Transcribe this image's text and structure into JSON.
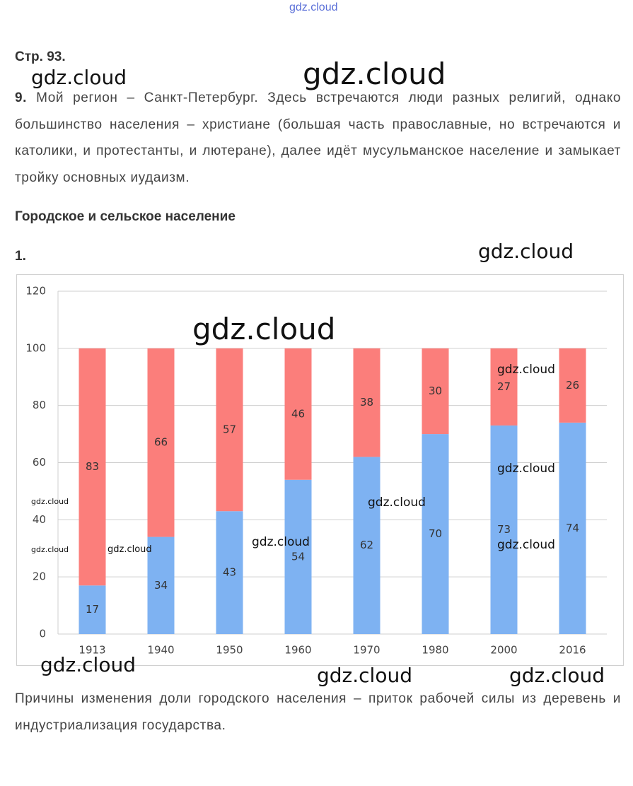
{
  "page_mark": "gdz.cloud",
  "header": "Стр. 93.",
  "task9": {
    "number": "9.",
    "text": "Мой регион – Санкт-Петербург. Здесь встречаются люди разных религий, однако большинство населения – христиане (большая часть православные, но встречаются и католики, и протестанты, и лютеране), далее идёт мусульманское население и замыкает тройку основных иудаизм."
  },
  "section_title": "Городское и сельское население",
  "task1_number": "1.",
  "chart_data": {
    "type": "stacked_bar",
    "categories": [
      "1913",
      "1940",
      "1950",
      "1960",
      "1970",
      "1980",
      "2000",
      "2016"
    ],
    "series": [
      {
        "color": "#7eb2f2",
        "values": [
          17,
          34,
          43,
          54,
          62,
          70,
          73,
          74
        ]
      },
      {
        "color": "#fb7e7b",
        "values": [
          83,
          66,
          57,
          46,
          38,
          30,
          27,
          26
        ]
      }
    ],
    "ylim": [
      0,
      120
    ],
    "yticks": [
      0,
      20,
      40,
      60,
      80,
      100,
      120
    ],
    "grid": true
  },
  "conclusion": "Причины изменения доли городского населения – приток рабочей силы из деревень и индустриализация государства.",
  "watermarks": [
    "gdz.cloud",
    "gdz.cloud",
    "gdz.cloud",
    "gdz.cloud",
    "gdz.cloud",
    "gdz.cloud",
    "gdz.cloud",
    "gdz.cloud",
    "gdz.cloud",
    "gdz.cloud",
    "gdz.cloud",
    "gdz.cloud",
    "gdz.cloud",
    "gdz.cloud",
    "gdz.cloud"
  ]
}
